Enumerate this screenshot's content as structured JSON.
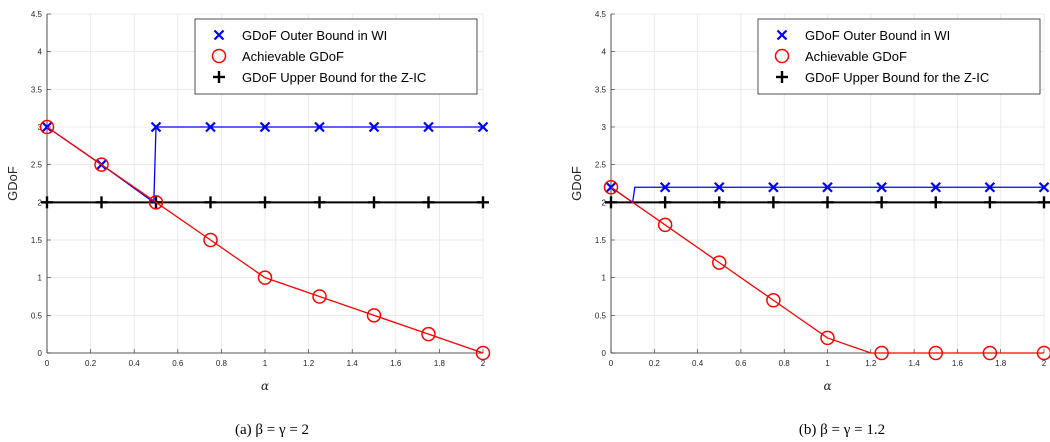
{
  "chart_data": [
    {
      "type": "line",
      "caption": "(a) β = γ = 2",
      "xlabel": "α",
      "ylabel": "GDoF",
      "xlim": [
        0,
        2
      ],
      "ylim": [
        0,
        4.5
      ],
      "xticks": [
        "0",
        "0.2",
        "0.4",
        "0.6",
        "0.8",
        "1",
        "1.2",
        "1.4",
        "1.6",
        "1.8",
        "2"
      ],
      "yticks": [
        "0",
        "0.5",
        "1",
        "1.5",
        "2",
        "2.5",
        "3",
        "3.5",
        "4",
        "4.5"
      ],
      "grid": true,
      "legend_position": "top-right",
      "series": [
        {
          "name": "GDoF Outer Bound in WI",
          "color": "#0000ff",
          "marker": "x",
          "line": [
            [
              0,
              3
            ],
            [
              0.25,
              2.5
            ],
            [
              0.49,
              2
            ],
            [
              0.5,
              3
            ],
            [
              2,
              3
            ]
          ],
          "markers": [
            [
              0,
              3
            ],
            [
              0.25,
              2.5
            ],
            [
              0.5,
              3
            ],
            [
              0.75,
              3
            ],
            [
              1,
              3
            ],
            [
              1.25,
              3
            ],
            [
              1.5,
              3
            ],
            [
              1.75,
              3
            ],
            [
              2,
              3
            ]
          ]
        },
        {
          "name": "Achievable GDoF",
          "color": "#ff0000",
          "marker": "circle",
          "line": [
            [
              0,
              3
            ],
            [
              0.25,
              2.5
            ],
            [
              0.5,
              2
            ],
            [
              0.75,
              1.5
            ],
            [
              1,
              1
            ],
            [
              1.25,
              0.75
            ],
            [
              1.5,
              0.5
            ],
            [
              1.75,
              0.25
            ],
            [
              2,
              0
            ]
          ],
          "markers": [
            [
              0,
              3
            ],
            [
              0.25,
              2.5
            ],
            [
              0.5,
              2
            ],
            [
              0.75,
              1.5
            ],
            [
              1,
              1
            ],
            [
              1.25,
              0.75
            ],
            [
              1.5,
              0.5
            ],
            [
              1.75,
              0.25
            ],
            [
              2,
              0
            ]
          ]
        },
        {
          "name": "GDoF Upper Bound for the Z-IC",
          "color": "#000000",
          "marker": "plus",
          "line": [
            [
              0,
              2
            ],
            [
              2,
              2
            ]
          ],
          "markers": [
            [
              0,
              2
            ],
            [
              0.25,
              2
            ],
            [
              0.5,
              2
            ],
            [
              0.75,
              2
            ],
            [
              1,
              2
            ],
            [
              1.25,
              2
            ],
            [
              1.5,
              2
            ],
            [
              1.75,
              2
            ],
            [
              2,
              2
            ]
          ]
        }
      ]
    },
    {
      "type": "line",
      "caption": "(b) β = γ = 1.2",
      "xlabel": "α",
      "ylabel": "GDoF",
      "xlim": [
        0,
        2
      ],
      "ylim": [
        0,
        4.5
      ],
      "xticks": [
        "0",
        "0.2",
        "0.4",
        "0.6",
        "0.8",
        "1",
        "1.2",
        "1.4",
        "1.6",
        "1.8",
        "2"
      ],
      "yticks": [
        "0",
        "0.5",
        "1",
        "1.5",
        "2",
        "2.5",
        "3",
        "3.5",
        "4",
        "4.5"
      ],
      "grid": true,
      "legend_position": "top-right",
      "series": [
        {
          "name": "GDoF Outer Bound in WI",
          "color": "#0000ff",
          "marker": "x",
          "line": [
            [
              0,
              2.2
            ],
            [
              0.1,
              2
            ],
            [
              0.11,
              2.2
            ],
            [
              2,
              2.2
            ]
          ],
          "markers": [
            [
              0,
              2.2
            ],
            [
              0.25,
              2.2
            ],
            [
              0.5,
              2.2
            ],
            [
              0.75,
              2.2
            ],
            [
              1,
              2.2
            ],
            [
              1.25,
              2.2
            ],
            [
              1.5,
              2.2
            ],
            [
              1.75,
              2.2
            ],
            [
              2,
              2.2
            ]
          ]
        },
        {
          "name": "Achievable GDoF",
          "color": "#ff0000",
          "marker": "circle",
          "line": [
            [
              0,
              2.2
            ],
            [
              0.25,
              1.7
            ],
            [
              0.5,
              1.2
            ],
            [
              0.75,
              0.7
            ],
            [
              1,
              0.2
            ],
            [
              1.2,
              0
            ],
            [
              1.25,
              0
            ],
            [
              1.5,
              0
            ],
            [
              1.75,
              0
            ],
            [
              2,
              0
            ]
          ],
          "markers": [
            [
              0,
              2.2
            ],
            [
              0.25,
              1.7
            ],
            [
              0.5,
              1.2
            ],
            [
              0.75,
              0.7
            ],
            [
              1,
              0.2
            ],
            [
              1.25,
              0
            ],
            [
              1.5,
              0
            ],
            [
              1.75,
              0
            ],
            [
              2,
              0
            ]
          ]
        },
        {
          "name": "GDoF Upper Bound for the Z-IC",
          "color": "#000000",
          "marker": "plus",
          "line": [
            [
              0,
              2
            ],
            [
              2,
              2
            ]
          ],
          "markers": [
            [
              0,
              2
            ],
            [
              0.25,
              2
            ],
            [
              0.5,
              2
            ],
            [
              0.75,
              2
            ],
            [
              1,
              2
            ],
            [
              1.25,
              2
            ],
            [
              1.5,
              2
            ],
            [
              1.75,
              2
            ],
            [
              2,
              2
            ]
          ]
        }
      ]
    }
  ]
}
